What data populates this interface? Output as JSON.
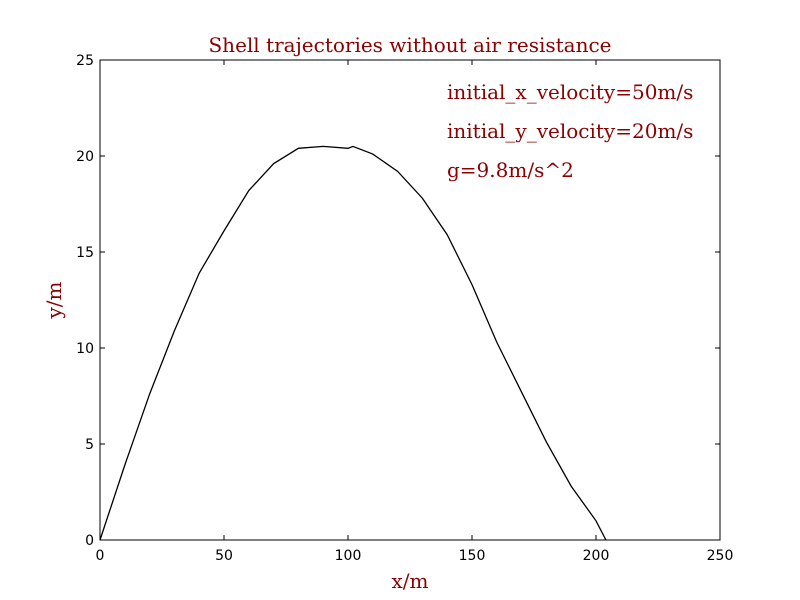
{
  "chart_data": {
    "type": "line",
    "title": "Shell trajectories without air resistance",
    "xlabel": "x/m",
    "ylabel": "y/m",
    "xlim": [
      0,
      250
    ],
    "ylim": [
      0,
      25
    ],
    "xticks": [
      0,
      50,
      100,
      150,
      200,
      250
    ],
    "yticks": [
      0,
      5,
      10,
      15,
      20,
      25
    ],
    "grid": false,
    "annotations": [
      "initial_x_velocity=50m/s",
      "initial_y_velocity=20m/s",
      "g=9.8m/s^2"
    ],
    "series": [
      {
        "x": [
          0,
          10,
          20,
          30,
          40,
          50,
          60,
          70,
          80,
          90,
          100,
          102,
          110,
          120,
          130,
          140,
          150,
          160,
          170,
          180,
          190,
          200,
          204
        ],
        "y": [
          0,
          3.9,
          7.6,
          10.9,
          13.9,
          16.1,
          18.2,
          19.6,
          20.4,
          20.5,
          20.4,
          20.5,
          20.1,
          19.2,
          17.8,
          15.9,
          13.3,
          10.3,
          7.7,
          5.1,
          2.8,
          1.0,
          0
        ],
        "color": "#000000"
      }
    ],
    "text_color": "#8b0000"
  }
}
